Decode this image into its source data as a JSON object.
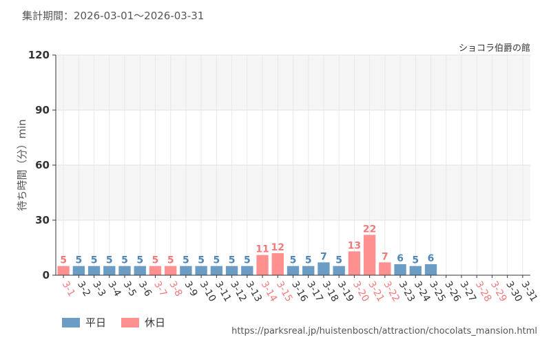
{
  "period_label": "集計期間：2026-03-01～2026-03-31",
  "source_url": "https://parksreal.jp/huistenbosch/attraction/chocolats_mansion.html",
  "colors": {
    "weekday": "#6a9cc4",
    "holiday": "#ff9090",
    "holiday_text": "#f07a7a",
    "weekday_text": "#4f86b8"
  },
  "chart_data": {
    "type": "bar",
    "title": "ショコラ伯爵の館",
    "ylabel": "待ち時間（分）min",
    "xlabel": "",
    "ylim": [
      0,
      120
    ],
    "yticks": [
      0,
      30,
      60,
      90,
      120
    ],
    "grid": true,
    "legend_position": "bottom-left",
    "categories": [
      "3-1",
      "3-2",
      "3-3",
      "3-4",
      "3-5",
      "3-6",
      "3-7",
      "3-8",
      "3-9",
      "3-10",
      "3-11",
      "3-12",
      "3-13",
      "3-14",
      "3-15",
      "3-16",
      "3-17",
      "3-18",
      "3-19",
      "3-20",
      "3-21",
      "3-22",
      "3-23",
      "3-24",
      "3-25",
      "3-26",
      "3-27",
      "3-28",
      "3-29",
      "3-30",
      "3-31"
    ],
    "values": [
      5,
      5,
      5,
      5,
      5,
      5,
      5,
      5,
      5,
      5,
      5,
      5,
      5,
      11,
      12,
      5,
      5,
      7,
      5,
      13,
      22,
      7,
      6,
      5,
      6,
      null,
      null,
      null,
      null,
      null,
      null
    ],
    "holiday": [
      true,
      false,
      false,
      false,
      false,
      false,
      true,
      true,
      false,
      false,
      false,
      false,
      false,
      true,
      true,
      false,
      false,
      false,
      false,
      true,
      true,
      true,
      false,
      false,
      false,
      false,
      false,
      true,
      true,
      false,
      false
    ],
    "series": [
      {
        "name": "平日",
        "key": "weekday"
      },
      {
        "name": "休日",
        "key": "holiday"
      }
    ]
  }
}
